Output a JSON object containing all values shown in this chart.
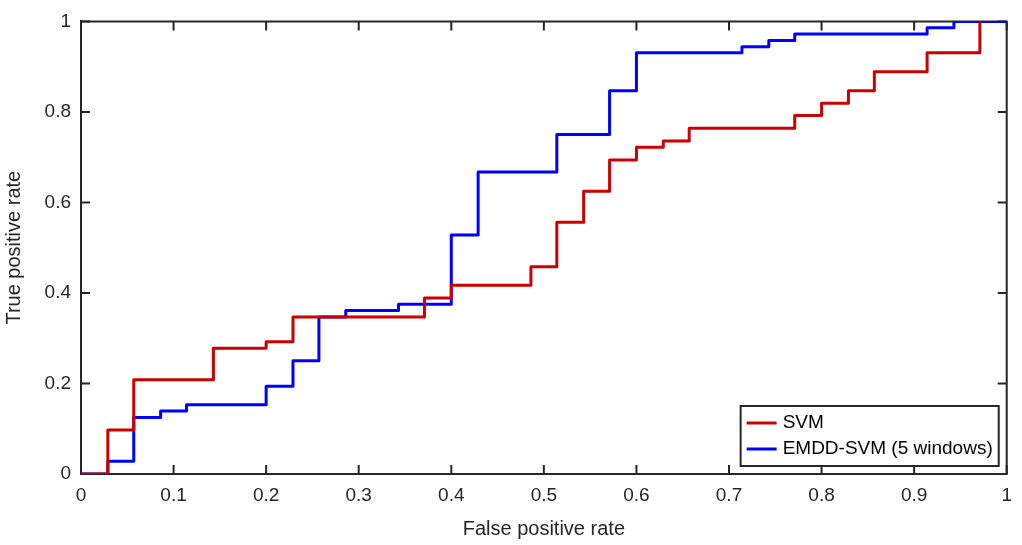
{
  "chart_data": {
    "type": "step",
    "xlabel": "False positive rate",
    "ylabel": "True positive rate",
    "xlim": [
      0,
      1
    ],
    "ylim": [
      0,
      1
    ],
    "xticks": [
      0,
      0.1,
      0.2,
      0.3,
      0.4,
      0.5,
      0.6,
      0.7,
      0.8,
      0.9,
      1
    ],
    "yticks": [
      0,
      0.2,
      0.4,
      0.6,
      0.8,
      1
    ],
    "grid": false,
    "legend": "bottom right",
    "marker": "none",
    "line_style": "solid",
    "series": [
      {
        "name": "SVM",
        "color": "#cc0000",
        "x": [
          0,
          0.029,
          0.057,
          0.143,
          0.2,
          0.229,
          0.371,
          0.4,
          0.486,
          0.514,
          0.543,
          0.571,
          0.6,
          0.629,
          0.657,
          0.771,
          0.8,
          0.829,
          0.857,
          0.914,
          0.971
        ],
        "values": [
          0,
          0.097,
          0.208,
          0.278,
          0.292,
          0.347,
          0.389,
          0.417,
          0.458,
          0.556,
          0.625,
          0.694,
          0.722,
          0.736,
          0.764,
          0.792,
          0.819,
          0.847,
          0.889,
          0.931,
          1
        ]
      },
      {
        "name": "EMDD-SVM (5 windows)",
        "color": "#0000ff",
        "x": [
          0,
          0.029,
          0.057,
          0.086,
          0.114,
          0.2,
          0.229,
          0.257,
          0.286,
          0.343,
          0.4,
          0.429,
          0.514,
          0.571,
          0.6,
          0.714,
          0.743,
          0.771,
          0.914,
          0.943,
          1
        ],
        "values": [
          0,
          0.028,
          0.125,
          0.139,
          0.153,
          0.194,
          0.25,
          0.347,
          0.361,
          0.375,
          0.528,
          0.667,
          0.75,
          0.847,
          0.931,
          0.944,
          0.958,
          0.972,
          0.986,
          1,
          1
        ]
      }
    ]
  }
}
